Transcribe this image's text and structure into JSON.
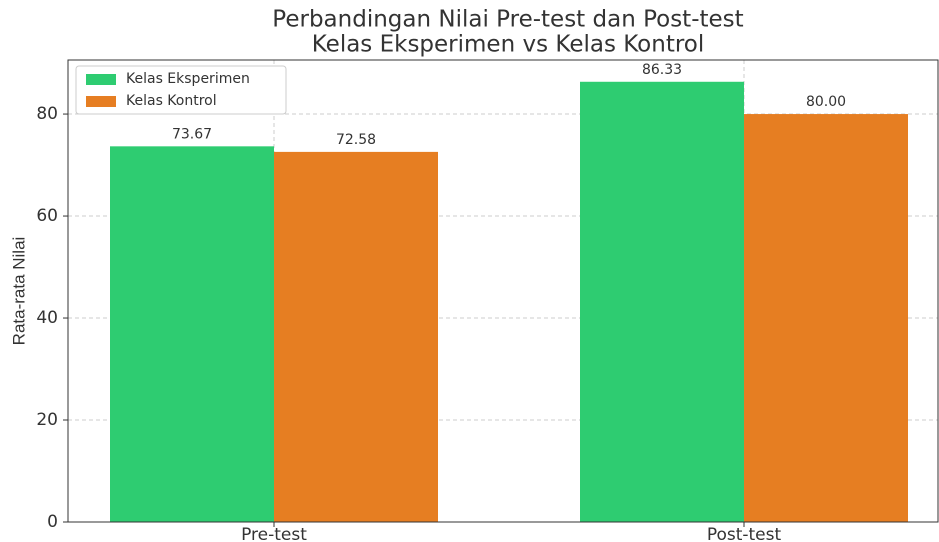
{
  "chart_data": {
    "type": "bar",
    "title": [
      "Perbandingan Nilai Pre-test dan Post-test",
      "Kelas Eksperimen vs Kelas Kontrol"
    ],
    "ylabel": "Rata-rata Nilai",
    "categories": [
      "Pre-test",
      "Post-test"
    ],
    "series": [
      {
        "name": "Kelas Eksperimen",
        "color": "#2ecc71",
        "values": [
          73.67,
          86.33
        ],
        "value_labels": [
          "73.67",
          "86.33"
        ]
      },
      {
        "name": "Kelas Kontrol",
        "color": "#e67e22",
        "values": [
          72.58,
          80
        ],
        "value_labels": [
          "72.58",
          "80.00"
        ]
      }
    ],
    "ylim": [
      0,
      90.6
    ],
    "yticks": [
      0,
      20,
      40,
      60,
      80
    ],
    "grid": true,
    "legend": "upper left"
  }
}
